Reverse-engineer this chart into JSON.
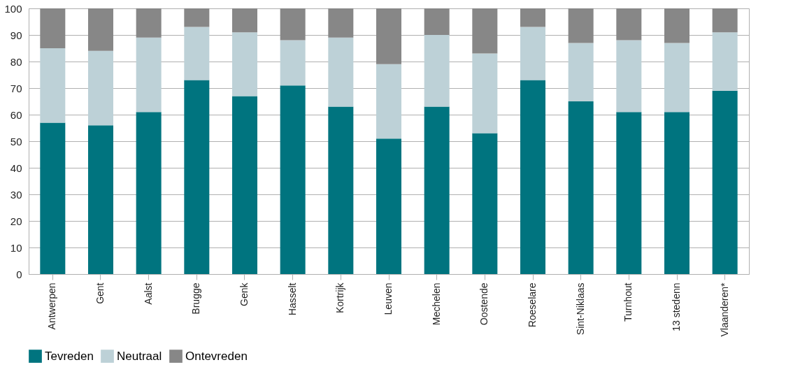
{
  "chart_data": {
    "type": "bar",
    "stacked": true,
    "categories": [
      "Antwerpen",
      "Gent",
      "Aalst",
      "Brugge",
      "Genk",
      "Hasselt",
      "Kortrijk",
      "Leuven",
      "Mechelen",
      "Oostende",
      "Roeselare",
      "Sint-Niklaas",
      "Turnhout",
      "13 stedenn",
      "Vlaanderen*"
    ],
    "series": [
      {
        "name": "Tevreden",
        "color": "#00747f",
        "values": [
          57,
          56,
          61,
          73,
          67,
          71,
          63,
          51,
          63,
          53,
          73,
          65,
          61,
          61,
          69
        ]
      },
      {
        "name": "Neutraal",
        "color": "#bdd1d7",
        "values": [
          28,
          28,
          28,
          20,
          24,
          17,
          26,
          28,
          27,
          30,
          20,
          22,
          27,
          26,
          22
        ]
      },
      {
        "name": "Ontevreden",
        "color": "#878787",
        "values": [
          15,
          16,
          11,
          7,
          9,
          12,
          11,
          21,
          10,
          17,
          7,
          13,
          12,
          13,
          9
        ]
      }
    ],
    "ylim": [
      0,
      100
    ],
    "yticks": [
      0,
      10,
      20,
      30,
      40,
      50,
      60,
      70,
      80,
      90,
      100
    ],
    "grid": "y",
    "legend": "bottom"
  }
}
